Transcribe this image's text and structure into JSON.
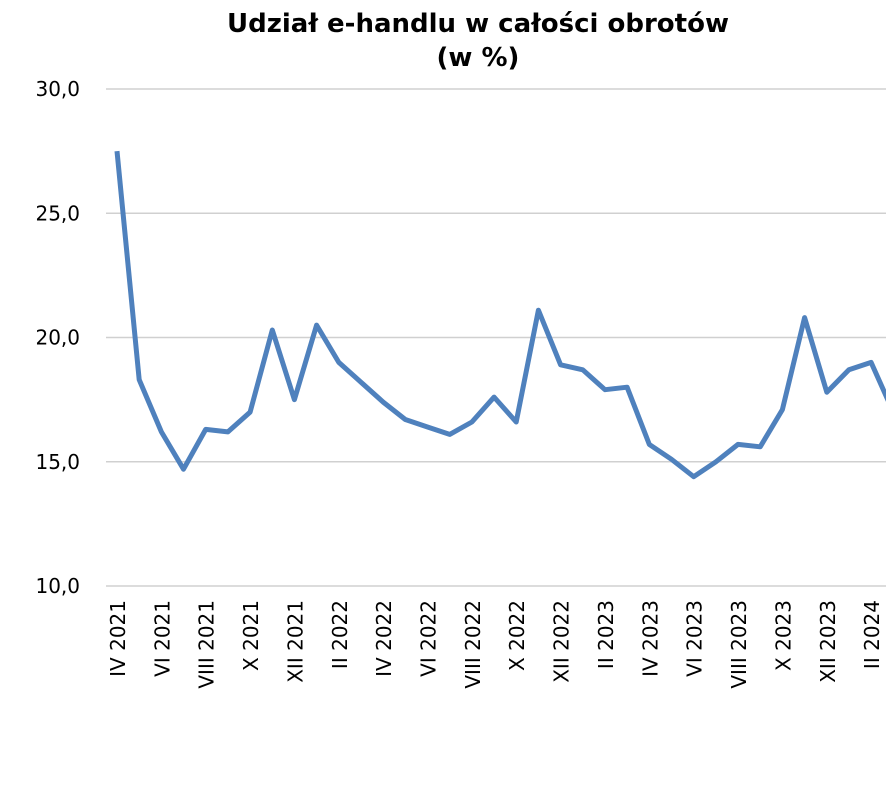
{
  "chart_data": {
    "type": "line",
    "title": "Udział e-handlu w całości obrotów",
    "subtitle": "(w %)",
    "categories": [
      "IV 2021",
      null,
      "VI 2021",
      null,
      "VIII 2021",
      null,
      "X 2021",
      null,
      "XII 2021",
      null,
      "II 2022",
      null,
      "IV 2022",
      null,
      "VI 2022",
      null,
      "VIII 2022",
      null,
      "X 2022",
      null,
      "XII 2022",
      null,
      "II 2023",
      null,
      "IV 2023",
      null,
      "VI 2023",
      null,
      "VIII 2023",
      null,
      "X 2023",
      null,
      "XII 2023",
      null,
      "II 2024",
      null
    ],
    "series": [
      {
        "name": "Udział e-handlu",
        "color": "#4f81bd",
        "values": [
          27.5,
          18.3,
          16.2,
          14.7,
          16.3,
          16.2,
          17.0,
          20.3,
          17.5,
          20.5,
          19.0,
          18.2,
          17.4,
          16.7,
          16.4,
          16.1,
          16.6,
          17.6,
          16.6,
          21.1,
          18.9,
          18.7,
          17.9,
          18.0,
          15.7,
          15.1,
          14.4,
          15.0,
          15.7,
          15.6,
          17.1,
          20.8,
          17.8,
          18.7,
          19.0,
          17.0
        ]
      }
    ],
    "ylim": [
      10,
      30
    ],
    "yticks": [
      {
        "value": 10,
        "label": "10,0"
      },
      {
        "value": 15,
        "label": "15,0"
      },
      {
        "value": 20,
        "label": "20,0"
      },
      {
        "value": 25,
        "label": "25,0"
      },
      {
        "value": 30,
        "label": "30,0"
      }
    ],
    "grid": true
  }
}
